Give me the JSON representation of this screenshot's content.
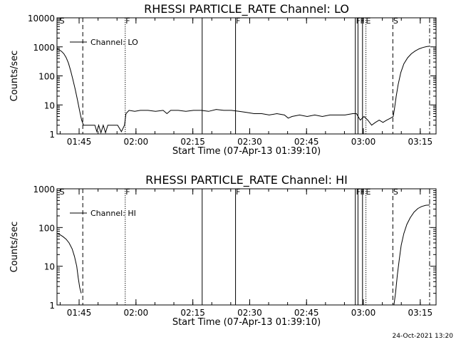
{
  "chart_data": [
    {
      "type": "line",
      "title": "RHESSI PARTICLE_RATE Channel: LO",
      "xlabel": "Start Time (07-Apr-13 01:39:10)",
      "ylabel": "Counts/sec",
      "yscale": "log",
      "ylim": [
        1,
        10000
      ],
      "xlim_minutes": [
        0,
        100
      ],
      "y_tick_labels": [
        "1",
        "10",
        "100",
        "1000",
        "10000"
      ],
      "x_tick_labels": [
        "01:45",
        "02:00",
        "02:15",
        "02:30",
        "02:45",
        "03:00",
        "03:15"
      ],
      "grid": false,
      "legend": {
        "position": "top-left",
        "entries": [
          "Channel: LO"
        ]
      },
      "event_lines": [
        {
          "t": 6.8,
          "style": "dashed"
        },
        {
          "t": 18.0,
          "style": "dotted"
        },
        {
          "t": 38.3,
          "style": "solid"
        },
        {
          "t": 47.1,
          "style": "solid"
        },
        {
          "t": 78.7,
          "style": "solid"
        },
        {
          "t": 79.4,
          "style": "solid"
        },
        {
          "t": 80.6,
          "style": "solid"
        },
        {
          "t": 81.5,
          "style": "dotted"
        },
        {
          "t": 88.6,
          "style": "dashed"
        },
        {
          "t": 98.3,
          "style": "dashdot"
        }
      ],
      "event_labels": [
        {
          "t": 0.5,
          "text": "S"
        },
        {
          "t": 17.9,
          "text": "F"
        },
        {
          "t": 47.0,
          "text": "F"
        },
        {
          "t": 78.7,
          "text": "F"
        },
        {
          "t": 79.8,
          "text": "F"
        },
        {
          "t": 81.3,
          "text": "E"
        },
        {
          "t": 88.5,
          "text": "S"
        }
      ],
      "series": [
        {
          "name": "Channel: LO",
          "points": [
            [
              0.0,
              850
            ],
            [
              0.6,
              780
            ],
            [
              1.2,
              700
            ],
            [
              1.8,
              580
            ],
            [
              2.4,
              430
            ],
            [
              3.0,
              280
            ],
            [
              3.6,
              150
            ],
            [
              4.2,
              75
            ],
            [
              4.8,
              35
            ],
            [
              5.4,
              15
            ],
            [
              6.0,
              6
            ],
            [
              6.5,
              3
            ],
            [
              7.0,
              2
            ],
            [
              8.0,
              2
            ],
            [
              9.0,
              2
            ],
            [
              10.0,
              2
            ],
            [
              10.5,
              1.2
            ],
            [
              11.0,
              2
            ],
            [
              11.6,
              1.1
            ],
            [
              12.2,
              2
            ],
            [
              12.8,
              1.1
            ],
            [
              13.4,
              2
            ],
            [
              14.0,
              2
            ],
            [
              15.0,
              2
            ],
            [
              16.0,
              2
            ],
            [
              17.0,
              1.2
            ],
            [
              17.8,
              2
            ],
            [
              18.2,
              5
            ],
            [
              19.0,
              6.5
            ],
            [
              20.5,
              6
            ],
            [
              22.0,
              6.5
            ],
            [
              24.0,
              6.5
            ],
            [
              26.0,
              6
            ],
            [
              28.0,
              6.5
            ],
            [
              29.0,
              5
            ],
            [
              30.0,
              6.5
            ],
            [
              32.0,
              6.5
            ],
            [
              34.0,
              6
            ],
            [
              36.0,
              6.5
            ],
            [
              38.0,
              6.5
            ],
            [
              40.0,
              6
            ],
            [
              42.0,
              7
            ],
            [
              44.0,
              6.5
            ],
            [
              46.0,
              6.5
            ],
            [
              48.0,
              6
            ],
            [
              50.0,
              5.5
            ],
            [
              52.0,
              5
            ],
            [
              54.0,
              5
            ],
            [
              56.0,
              4.5
            ],
            [
              58.0,
              5
            ],
            [
              60.0,
              4.5
            ],
            [
              61.0,
              3.5
            ],
            [
              62.0,
              4
            ],
            [
              64.0,
              4.5
            ],
            [
              66.0,
              4
            ],
            [
              68.0,
              4.5
            ],
            [
              70.0,
              4
            ],
            [
              72.0,
              4.5
            ],
            [
              74.0,
              4.5
            ],
            [
              76.0,
              4.5
            ],
            [
              78.0,
              5
            ],
            [
              79.0,
              5
            ],
            [
              80.0,
              3
            ],
            [
              81.0,
              4
            ],
            [
              82.0,
              3
            ],
            [
              83.0,
              2
            ],
            [
              84.0,
              2.5
            ],
            [
              85.0,
              3
            ],
            [
              86.0,
              2.5
            ],
            [
              87.0,
              3
            ],
            [
              88.0,
              3.5
            ],
            [
              88.7,
              4
            ],
            [
              89.0,
              7
            ],
            [
              89.5,
              20
            ],
            [
              90.0,
              50
            ],
            [
              90.7,
              130
            ],
            [
              91.5,
              260
            ],
            [
              92.5,
              420
            ],
            [
              93.5,
              580
            ],
            [
              94.5,
              720
            ],
            [
              95.5,
              850
            ],
            [
              96.5,
              950
            ],
            [
              97.5,
              1020
            ],
            [
              98.3,
              1050
            ]
          ]
        }
      ]
    },
    {
      "type": "line",
      "title": "RHESSI PARTICLE_RATE Channel: HI",
      "xlabel": "Start Time (07-Apr-13 01:39:10)",
      "ylabel": "Counts/sec",
      "yscale": "log",
      "ylim": [
        1,
        1000
      ],
      "xlim_minutes": [
        0,
        100
      ],
      "y_tick_labels": [
        "1",
        "10",
        "100",
        "1000"
      ],
      "x_tick_labels": [
        "01:45",
        "02:00",
        "02:15",
        "02:30",
        "02:45",
        "03:00",
        "03:15"
      ],
      "grid": false,
      "legend": {
        "position": "top-left",
        "entries": [
          "Channel: HI"
        ]
      },
      "event_lines": [
        {
          "t": 6.8,
          "style": "dashed"
        },
        {
          "t": 18.0,
          "style": "dotted"
        },
        {
          "t": 38.3,
          "style": "solid"
        },
        {
          "t": 47.1,
          "style": "solid"
        },
        {
          "t": 78.7,
          "style": "solid"
        },
        {
          "t": 79.4,
          "style": "solid"
        },
        {
          "t": 80.6,
          "style": "solid"
        },
        {
          "t": 81.5,
          "style": "dotted"
        },
        {
          "t": 88.6,
          "style": "dashed"
        },
        {
          "t": 98.3,
          "style": "dashdot"
        }
      ],
      "event_labels": [
        {
          "t": 0.5,
          "text": "S"
        },
        {
          "t": 17.9,
          "text": "F"
        },
        {
          "t": 47.0,
          "text": "F"
        },
        {
          "t": 78.7,
          "text": "F"
        },
        {
          "t": 79.8,
          "text": "F"
        },
        {
          "t": 81.3,
          "text": "E"
        },
        {
          "t": 88.5,
          "text": "S"
        }
      ],
      "series": [
        {
          "name": "Channel: HI",
          "points": [
            [
              0.0,
              70
            ],
            [
              0.8,
              65
            ],
            [
              1.6,
              58
            ],
            [
              2.4,
              50
            ],
            [
              3.2,
              40
            ],
            [
              4.0,
              28
            ],
            [
              4.6,
              18
            ],
            [
              5.2,
              10
            ],
            [
              5.6,
              5
            ],
            [
              6.0,
              2.8
            ],
            [
              6.4,
              2
            ]
          ]
        },
        {
          "name": "Channel: HI",
          "points": [
            [
              88.9,
              1
            ],
            [
              89.3,
              2
            ],
            [
              89.8,
              6
            ],
            [
              90.3,
              15
            ],
            [
              90.8,
              35
            ],
            [
              91.5,
              70
            ],
            [
              92.3,
              120
            ],
            [
              93.2,
              180
            ],
            [
              94.2,
              250
            ],
            [
              95.2,
              310
            ],
            [
              96.2,
              350
            ],
            [
              97.3,
              375
            ],
            [
              98.3,
              380
            ]
          ]
        }
      ]
    }
  ],
  "footer": "24-Oct-2021 13:20"
}
